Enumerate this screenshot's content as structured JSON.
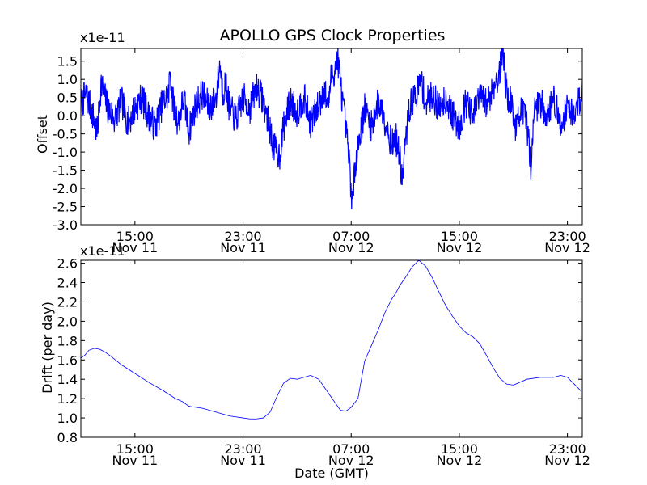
{
  "chart_data": [
    {
      "type": "line",
      "title": "APOLLO GPS Clock Properties",
      "ylabel": "Offset",
      "xlabel": "",
      "scale_label": "x1e-11",
      "x_unit": "hours since Nov 11 11:00 GMT",
      "xlim": [
        0,
        37.1
      ],
      "ylim": [
        -3.0,
        1.85
      ],
      "y_ticks": [
        "-3.0",
        "-2.5",
        "-2.0",
        "-1.5",
        "-1.0",
        "-0.5",
        "0.0",
        "0.5",
        "1.0",
        "1.5"
      ],
      "x_ticks": [
        {
          "x": 4,
          "time": "15:00",
          "date": "Nov 11"
        },
        {
          "x": 12,
          "time": "23:00",
          "date": "Nov 11"
        },
        {
          "x": 20,
          "time": "07:00",
          "date": "Nov 12"
        },
        {
          "x": 28,
          "time": "15:00",
          "date": "Nov 12"
        },
        {
          "x": 36,
          "time": "23:00",
          "date": "Nov 12"
        }
      ],
      "grid": false,
      "series_color": "#0000ff",
      "series": [
        {
          "name": "Offset",
          "x": [
            0,
            0.4,
            0.9,
            1.2,
            1.5,
            2.0,
            2.5,
            3.0,
            3.5,
            4.0,
            4.5,
            5.0,
            5.5,
            6.0,
            6.5,
            6.6,
            6.8,
            7.2,
            7.6,
            8.0,
            8.5,
            9.0,
            9.5,
            10.0,
            10.3,
            10.5,
            10.7,
            11.0,
            11.5,
            12.0,
            12.5,
            13.0,
            13.5,
            14.0,
            14.3,
            14.7,
            15.0,
            15.5,
            16.0,
            16.5,
            17.0,
            17.5,
            18.0,
            18.3,
            18.5,
            18.8,
            19.0,
            19.3,
            19.6,
            19.8,
            20.0,
            20.1,
            20.3,
            20.6,
            21.0,
            21.5,
            22.0,
            22.5,
            23.0,
            23.3,
            23.6,
            23.8,
            24.0,
            24.3,
            24.8,
            25.2,
            25.5,
            26.0,
            26.5,
            27.0,
            27.5,
            28.0,
            28.5,
            29.0,
            29.5,
            30.0,
            30.5,
            31.0,
            31.2,
            31.5,
            31.9,
            32.2,
            32.5,
            33.0,
            33.3,
            33.5,
            34.0,
            34.5,
            35.0,
            35.5,
            36.0,
            36.5,
            37.0
          ],
          "y": [
            0.3,
            0.6,
            0.0,
            -0.5,
            0.9,
            0.2,
            -0.1,
            0.4,
            -0.2,
            0.2,
            0.5,
            0.0,
            -0.3,
            0.3,
            0.6,
            1.3,
            0.4,
            -0.2,
            0.5,
            -0.4,
            0.3,
            0.6,
            0.2,
            0.5,
            1.45,
            0.6,
            0.9,
            0.2,
            -0.1,
            0.5,
            0.2,
            0.8,
            0.4,
            -0.4,
            -0.9,
            -1.1,
            -0.3,
            0.4,
            0.1,
            0.5,
            -0.2,
            0.2,
            0.7,
            0.3,
            1.0,
            1.3,
            1.6,
            0.6,
            -0.4,
            -1.0,
            -2.0,
            -2.5,
            -1.3,
            -0.6,
            0.2,
            -0.3,
            0.4,
            -0.1,
            -0.8,
            -0.6,
            -1.2,
            -1.8,
            -0.8,
            0.2,
            0.6,
            1.0,
            0.3,
            0.6,
            0.2,
            0.5,
            0.0,
            -0.3,
            0.4,
            -0.1,
            0.6,
            0.3,
            0.8,
            1.2,
            1.9,
            0.6,
            0.3,
            -0.4,
            0.2,
            -0.2,
            -1.4,
            0.1,
            0.4,
            0.0,
            0.5,
            -0.3,
            0.3,
            0.0,
            0.6
          ]
        }
      ]
    },
    {
      "type": "line",
      "title": "",
      "ylabel": "Drift (per day)",
      "xlabel": "Date (GMT)",
      "scale_label": "x1e-11",
      "x_unit": "hours since Nov 11 11:00 GMT",
      "xlim": [
        0,
        37.1
      ],
      "ylim": [
        0.8,
        2.63
      ],
      "y_ticks": [
        "0.8",
        "1.0",
        "1.2",
        "1.4",
        "1.6",
        "1.8",
        "2.0",
        "2.2",
        "2.4",
        "2.6"
      ],
      "x_ticks": [
        {
          "x": 4,
          "time": "15:00",
          "date": "Nov 11"
        },
        {
          "x": 12,
          "time": "23:00",
          "date": "Nov 11"
        },
        {
          "x": 20,
          "time": "07:00",
          "date": "Nov 12"
        },
        {
          "x": 28,
          "time": "15:00",
          "date": "Nov 12"
        },
        {
          "x": 36,
          "time": "23:00",
          "date": "Nov 12"
        }
      ],
      "grid": false,
      "series_color": "#0000ff",
      "series": [
        {
          "name": "Drift",
          "x": [
            0,
            0.3,
            0.6,
            1.0,
            1.4,
            1.8,
            2.2,
            3.0,
            4.0,
            5.0,
            6.0,
            7.0,
            7.5,
            8.0,
            8.5,
            9.0,
            10.0,
            11.0,
            12.0,
            12.5,
            13.0,
            13.5,
            14.0,
            14.5,
            15.0,
            15.5,
            16.0,
            17.0,
            17.6,
            18.0,
            18.4,
            18.8,
            19.2,
            19.6,
            20.0,
            20.5,
            21.0,
            21.5,
            22.0,
            22.5,
            23.0,
            23.3,
            23.6,
            24.0,
            24.5,
            25.0,
            25.5,
            26.0,
            26.5,
            27.0,
            27.5,
            28.0,
            28.5,
            29.0,
            29.5,
            30.0,
            30.5,
            31.0,
            31.5,
            32.0,
            33.0,
            34.0,
            34.5,
            35.0,
            35.5,
            36.0,
            36.5,
            37.0
          ],
          "y": [
            1.62,
            1.65,
            1.7,
            1.72,
            1.71,
            1.68,
            1.64,
            1.55,
            1.46,
            1.37,
            1.29,
            1.2,
            1.17,
            1.12,
            1.11,
            1.1,
            1.06,
            1.02,
            1.0,
            0.99,
            0.99,
            1.0,
            1.06,
            1.22,
            1.36,
            1.41,
            1.4,
            1.44,
            1.4,
            1.32,
            1.24,
            1.16,
            1.08,
            1.07,
            1.11,
            1.2,
            1.59,
            1.75,
            1.91,
            2.09,
            2.23,
            2.29,
            2.37,
            2.45,
            2.56,
            2.63,
            2.57,
            2.45,
            2.3,
            2.16,
            2.05,
            1.95,
            1.88,
            1.84,
            1.77,
            1.65,
            1.52,
            1.41,
            1.35,
            1.34,
            1.4,
            1.42,
            1.42,
            1.42,
            1.44,
            1.42,
            1.35,
            1.28
          ]
        }
      ]
    }
  ]
}
